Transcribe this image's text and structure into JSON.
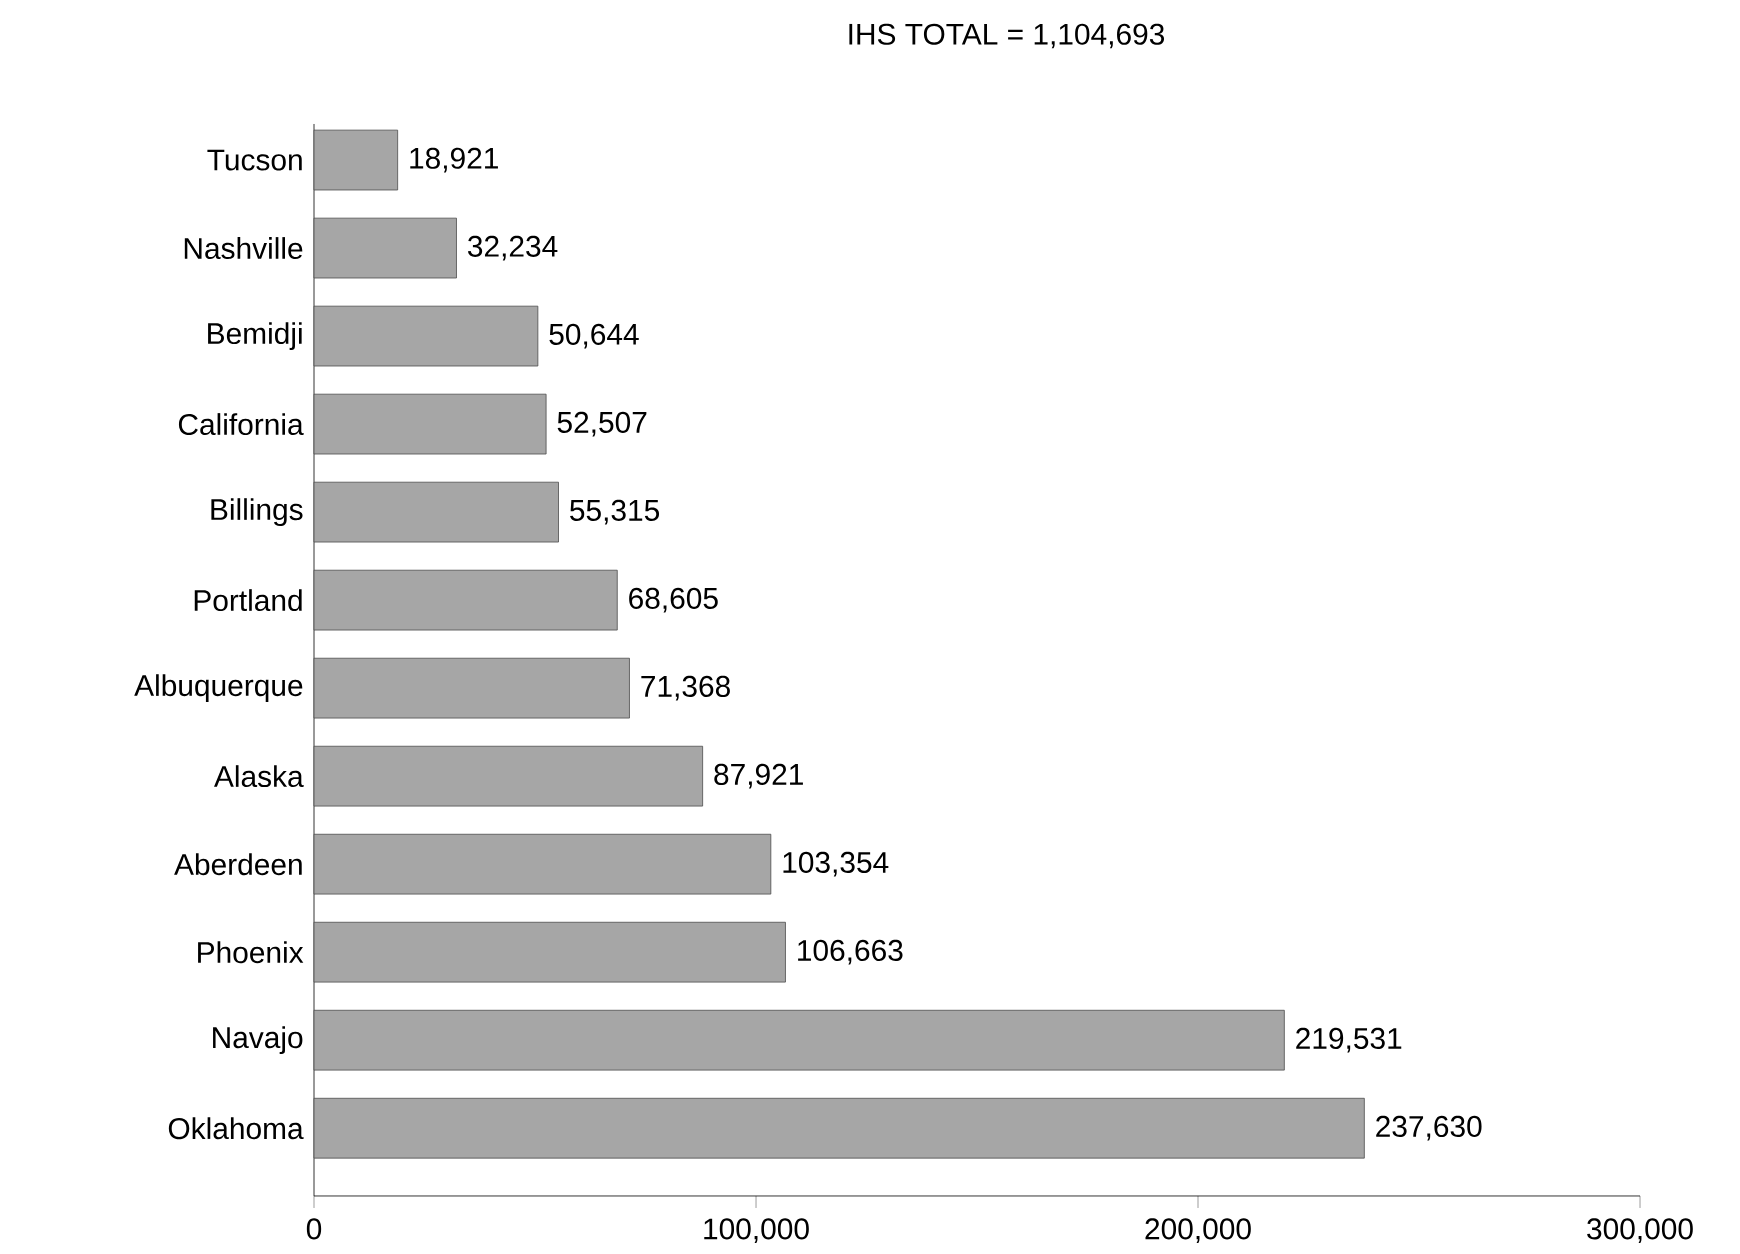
{
  "chart_data": {
    "type": "bar",
    "orientation": "horizontal",
    "title": "IHS TOTAL = 1,104,693",
    "categories": [
      "Tucson",
      "Nashville",
      "Bemidji",
      "California",
      "Billings",
      "Portland",
      "Albuquerque",
      "Alaska",
      "Aberdeen",
      "Phoenix",
      "Navajo",
      "Oklahoma"
    ],
    "values": [
      18921,
      32234,
      50644,
      52507,
      55315,
      68605,
      71368,
      87921,
      103354,
      106663,
      219531,
      237630
    ],
    "value_labels": [
      "18,921",
      "32,234",
      "50,644",
      "52,507",
      "55,315",
      "68,605",
      "71,368",
      "87,921",
      "103,354",
      "106,663",
      "219,531",
      "237,630"
    ],
    "color": "#a6a6a6",
    "xlim": [
      0,
      300000
    ],
    "xticks": [
      {
        "value": 0,
        "label": "0"
      },
      {
        "value": 100000,
        "label": "100,000"
      },
      {
        "value": 200000,
        "label": "200,000"
      },
      {
        "value": 300000,
        "label": "300,000"
      }
    ]
  }
}
